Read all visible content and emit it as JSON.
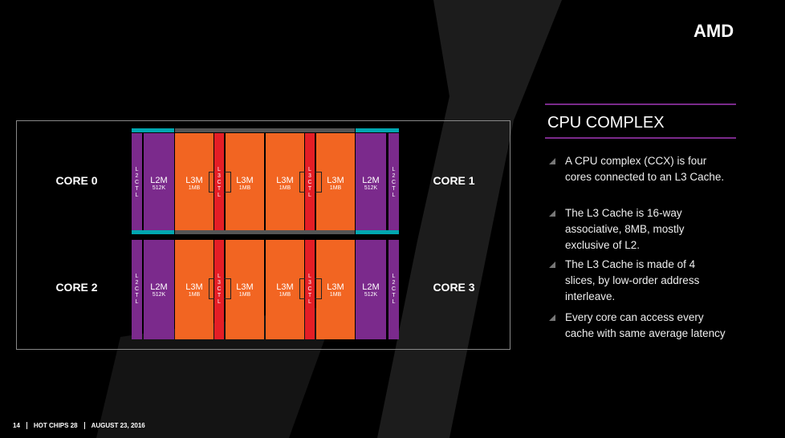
{
  "logo": "AMD",
  "title": "CPU COMPLEX",
  "bullets": [
    "A CPU complex (CCX) is four cores connected to an L3 Cache.",
    "The L3 Cache is 16-way associative, 8MB, mostly exclusive of L2.",
    "The L3 Cache is made of 4 slices, by low-order address interleave.",
    "Every core can access every cache with same average latency"
  ],
  "footer": {
    "page": "14",
    "event": "HOT CHIPS 28",
    "date": "AUGUST 23, 2016"
  },
  "diagram": {
    "cores": [
      "CORE 0",
      "CORE 1",
      "CORE 2",
      "CORE 3"
    ],
    "l2_blocks": [
      {
        "ctl": "L2CTL",
        "name": "L2M",
        "size": "512K"
      },
      {
        "ctl": "L2CTL",
        "name": "L2M",
        "size": "512K"
      },
      {
        "ctl": "L2CTL",
        "name": "L2M",
        "size": "512K"
      },
      {
        "ctl": "L2CTL",
        "name": "L2M",
        "size": "512K"
      }
    ],
    "l3_blocks": [
      {
        "name": "L3M",
        "size": "1MB"
      },
      {
        "name": "L3M",
        "size": "1MB"
      },
      {
        "name": "L3M",
        "size": "1MB"
      },
      {
        "name": "L3M",
        "size": "1MB"
      },
      {
        "name": "L3M",
        "size": "1MB"
      },
      {
        "name": "L3M",
        "size": "1MB"
      },
      {
        "name": "L3M",
        "size": "1MB"
      },
      {
        "name": "L3M",
        "size": "1MB"
      }
    ],
    "l3_ctl": [
      "L3CTL",
      "L3CTL",
      "L3CTL",
      "L3CTL"
    ]
  }
}
